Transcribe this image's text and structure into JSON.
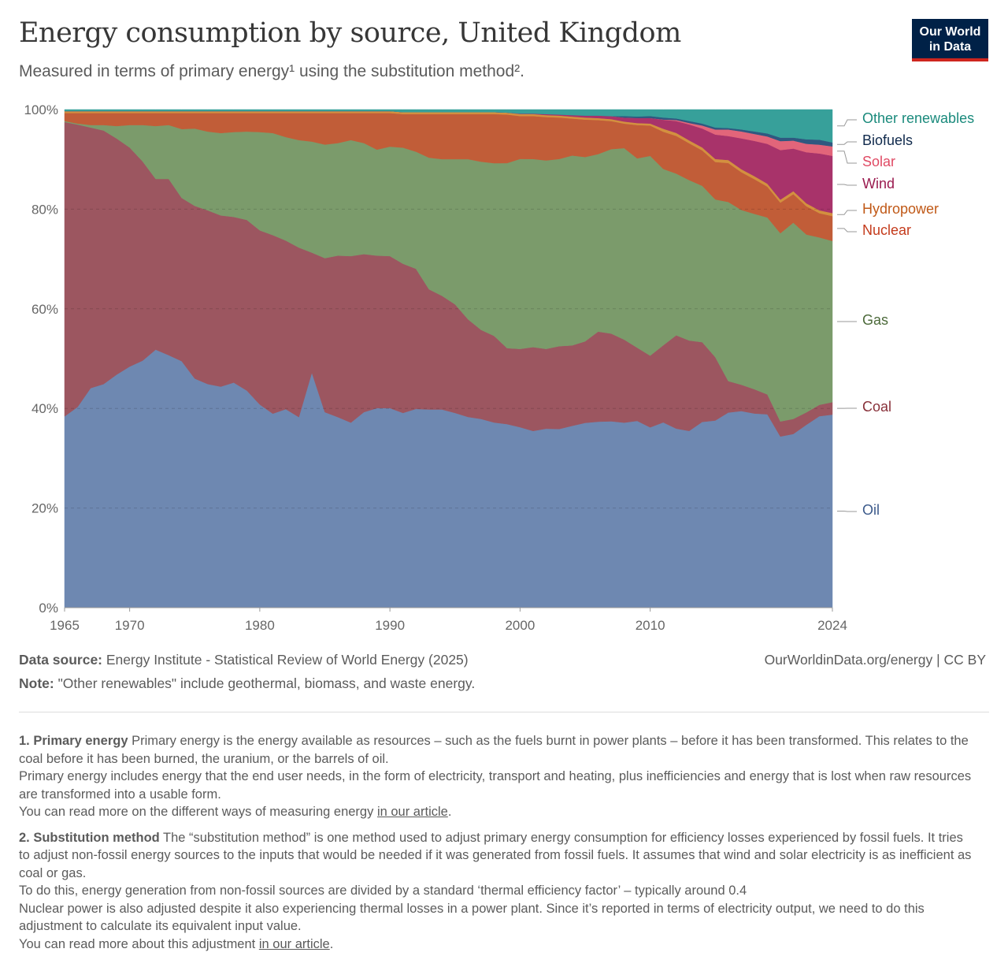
{
  "header": {
    "title": "Energy consumption by source, United Kingdom",
    "subtitle": "Measured in terms of primary energy¹ using the substitution method².",
    "logo_line1": "Our World",
    "logo_line2": "in Data"
  },
  "chart_data": {
    "type": "area",
    "stacked": "relative",
    "title": "Energy consumption by source, United Kingdom",
    "ylim": [
      0,
      100
    ],
    "y_ticks": [
      "0%",
      "20%",
      "40%",
      "60%",
      "80%",
      "100%"
    ],
    "x_ticks": [
      "1965",
      "1970",
      "1980",
      "1990",
      "2000",
      "2010",
      "2024"
    ],
    "grid": "horizontal dashed",
    "legend": "right (inline labels)",
    "x": [
      1965,
      1966,
      1967,
      1968,
      1969,
      1970,
      1971,
      1972,
      1973,
      1974,
      1975,
      1976,
      1977,
      1978,
      1979,
      1980,
      1981,
      1982,
      1983,
      1984,
      1985,
      1986,
      1987,
      1988,
      1989,
      1990,
      1991,
      1992,
      1993,
      1994,
      1995,
      1996,
      1997,
      1998,
      1999,
      2000,
      2001,
      2002,
      2003,
      2004,
      2005,
      2006,
      2007,
      2008,
      2009,
      2010,
      2011,
      2012,
      2013,
      2014,
      2015,
      2016,
      2017,
      2018,
      2019,
      2020,
      2021,
      2022,
      2023,
      2024
    ],
    "series": [
      {
        "name": "Oil",
        "color": "#6e88b1",
        "label_color": "#3c5a8b",
        "values": [
          38.4,
          40.2,
          44,
          44.8,
          46.7,
          48.3,
          49.5,
          51.7,
          50.6,
          49.4,
          45.9,
          44.8,
          44.3,
          45.1,
          43.5,
          40.7,
          38.8,
          39.7,
          38.1,
          47,
          39.1,
          38.1,
          37,
          39.1,
          39.9,
          39.9,
          38.9,
          39.7,
          39.6,
          39.6,
          38.9,
          38.1,
          37.7,
          37,
          36.7,
          36.2,
          35.4,
          35.9,
          35.8,
          36.4,
          37,
          37.2,
          37.2,
          37,
          37.5,
          36.2,
          37.3,
          36.1,
          35.6,
          37.3,
          37.5,
          39.1,
          39.6,
          39.1,
          38.9,
          34.2,
          34.7,
          36.9,
          38.8,
          38.8
        ]
      },
      {
        "name": "Coal",
        "color": "#9c5660",
        "label_color": "#883039",
        "values": [
          59.1,
          56.6,
          52.2,
          50.8,
          47.3,
          43.9,
          39.9,
          34.2,
          35.3,
          32.7,
          34.6,
          34.8,
          34.3,
          33.2,
          34.2,
          34.9,
          35.7,
          33.7,
          33.9,
          24,
          30.8,
          32.3,
          33.3,
          31.6,
          30.5,
          30.4,
          29.8,
          28,
          24,
          22.7,
          21.7,
          19.5,
          17.8,
          17.3,
          15.2,
          15.7,
          16.8,
          16,
          16.6,
          16.1,
          16.3,
          18,
          17.5,
          16.6,
          14.7,
          14.4,
          15.5,
          18.8,
          18.2,
          16,
          12.7,
          6.3,
          5.3,
          4.9,
          4,
          3,
          3,
          2.5,
          2.3,
          2.5
        ]
      },
      {
        "name": "Gas",
        "color": "#7b9b6b",
        "label_color": "#4c6a3a",
        "values": [
          0.2,
          0.2,
          0.5,
          1.1,
          2.5,
          4.5,
          7.3,
          10.6,
          10.8,
          13.8,
          15.5,
          15.8,
          16.5,
          17,
          17.7,
          19.7,
          20.4,
          20.7,
          21.5,
          22.2,
          22.7,
          22.5,
          23.2,
          22.2,
          21.2,
          21.9,
          23.2,
          23.4,
          26.3,
          27.3,
          29,
          32,
          33.6,
          34.5,
          37,
          38.1,
          37.7,
          37.8,
          37.5,
          38,
          36.9,
          35.5,
          36.8,
          38.3,
          38,
          40.1,
          35.5,
          32.6,
          32.3,
          31.4,
          31.6,
          35.9,
          35.2,
          35.3,
          35.6,
          37.6,
          39.2,
          35.9,
          33.9,
          32.4
        ]
      },
      {
        "name": "Nuclear",
        "color": "#c15d38",
        "label_color": "#c43b1c",
        "values": [
          1.6,
          2.1,
          2.4,
          2.4,
          2.6,
          2.4,
          2.4,
          2.6,
          2.4,
          3.2,
          3.1,
          3.7,
          4,
          3.8,
          3.7,
          3.8,
          4,
          4.8,
          5.4,
          5.7,
          6.3,
          6,
          5.4,
          6,
          7.3,
          6.7,
          6.7,
          7.5,
          8.7,
          9,
          9,
          9,
          9.5,
          9.8,
          9.7,
          8.6,
          8.6,
          8.7,
          8.3,
          7.4,
          7.5,
          6.8,
          5.6,
          4.9,
          6.7,
          6.1,
          7.5,
          7.6,
          7.4,
          7.1,
          7.5,
          7.8,
          7.6,
          7,
          6.2,
          6.1,
          5.7,
          5.7,
          4.9,
          5
        ]
      },
      {
        "name": "Hydropower",
        "color": "#d3903f",
        "label_color": "#c05917",
        "values": [
          0.4,
          0.4,
          0.4,
          0.4,
          0.4,
          0.4,
          0.4,
          0.4,
          0.4,
          0.4,
          0.4,
          0.4,
          0.4,
          0.4,
          0.4,
          0.4,
          0.4,
          0.4,
          0.4,
          0.4,
          0.4,
          0.4,
          0.4,
          0.4,
          0.4,
          0.4,
          0.4,
          0.4,
          0.4,
          0.4,
          0.4,
          0.4,
          0.4,
          0.4,
          0.4,
          0.4,
          0.4,
          0.4,
          0.4,
          0.4,
          0.4,
          0.4,
          0.4,
          0.4,
          0.4,
          0.4,
          0.6,
          0.6,
          0.6,
          0.6,
          0.6,
          0.6,
          0.6,
          0.6,
          0.6,
          0.6,
          0.6,
          0.6,
          0.6,
          0.6
        ]
      },
      {
        "name": "Wind",
        "color": "#a8336a",
        "label_color": "#9a1b4f",
        "values": [
          0,
          0,
          0,
          0,
          0,
          0,
          0,
          0,
          0,
          0,
          0,
          0,
          0,
          0,
          0,
          0,
          0,
          0,
          0,
          0,
          0,
          0,
          0,
          0,
          0,
          0,
          0,
          0,
          0,
          0,
          0,
          0,
          0,
          0,
          0,
          0.1,
          0.1,
          0.2,
          0.2,
          0.3,
          0.4,
          0.5,
          0.6,
          0.8,
          1,
          1.1,
          1.8,
          2.4,
          3.2,
          3.8,
          4.9,
          4.8,
          6.2,
          7.1,
          8,
          9.9,
          8.5,
          10.3,
          11.5,
          11.5
        ]
      },
      {
        "name": "Solar",
        "color": "#e2657a",
        "label_color": "#e04a64",
        "values": [
          0,
          0,
          0,
          0,
          0,
          0,
          0,
          0,
          0,
          0,
          0,
          0,
          0,
          0,
          0,
          0,
          0,
          0,
          0,
          0,
          0,
          0,
          0,
          0,
          0,
          0,
          0,
          0,
          0,
          0,
          0,
          0,
          0,
          0,
          0,
          0,
          0,
          0,
          0,
          0,
          0,
          0,
          0,
          0,
          0,
          0,
          0.05,
          0.2,
          0.3,
          0.6,
          1,
          1.3,
          1.4,
          1.4,
          1.5,
          1.8,
          1.6,
          1.7,
          1.8,
          1.9
        ]
      },
      {
        "name": "Biofuels",
        "color": "#2f5880",
        "label_color": "#102a4c",
        "values": [
          0,
          0,
          0,
          0,
          0,
          0,
          0,
          0,
          0,
          0,
          0,
          0,
          0,
          0,
          0,
          0,
          0,
          0,
          0,
          0,
          0,
          0,
          0,
          0,
          0,
          0,
          0,
          0,
          0,
          0,
          0,
          0,
          0,
          0,
          0,
          0,
          0,
          0,
          0,
          0,
          0,
          0,
          0,
          0.3,
          0.3,
          0.4,
          0.4,
          0.3,
          0.4,
          0.4,
          0.4,
          0.3,
          0.4,
          0.5,
          0.6,
          0.7,
          0.6,
          0.9,
          1,
          0.8
        ]
      },
      {
        "name": "Other renewables",
        "color": "#37a09a",
        "label_color": "#1a8a7c",
        "values": [
          0.3,
          0.3,
          0.3,
          0.3,
          0.3,
          0.3,
          0.3,
          0.3,
          0.3,
          0.3,
          0.3,
          0.3,
          0.3,
          0.3,
          0.3,
          0.3,
          0.3,
          0.3,
          0.3,
          0.3,
          0.3,
          0.3,
          0.3,
          0.3,
          0.3,
          0.3,
          0.5,
          0.5,
          0.5,
          0.5,
          0.5,
          0.5,
          0.5,
          0.5,
          0.6,
          0.8,
          0.8,
          0.9,
          1,
          1.1,
          1.2,
          1.2,
          1.3,
          1.3,
          1.4,
          1.3,
          1.6,
          1.8,
          2.3,
          2.8,
          3.6,
          3.7,
          4,
          4.4,
          4.8,
          5.6,
          5.6,
          6,
          6.1,
          6.6
        ]
      }
    ]
  },
  "footer": {
    "source_label": "Data source:",
    "source_text": " Energy Institute - Statistical Review of World Energy (2025)",
    "url": "OurWorldinData.org/energy | CC BY",
    "note_label": "Note:",
    "note_text": " \"Other renewables\" include geothermal, biomass, and waste energy."
  },
  "notes": {
    "n1_title": "1. Primary energy",
    "n1_l1": " Primary energy is the energy available as resources – such as the fuels burnt in power plants – before it has been transformed. This relates to the coal before it has been burned, the uranium, or the barrels of oil.",
    "n1_l2": "Primary energy includes energy that the end user needs, in the form of electricity, transport and heating, plus inefficiencies and energy that is lost when raw resources are transformed into a usable form.",
    "n1_l3": "You can read more on the different ways of measuring energy ",
    "n1_link": "in our article",
    "n2_title": "2. Substitution method",
    "n2_l1": " The “substitution method” is one method used to adjust primary energy consumption for efficiency losses experienced by fossil fuels. It tries to adjust non-fossil energy sources to the inputs that would be needed if it was generated from fossil fuels. It assumes that wind and solar electricity is as inefficient as coal or gas.",
    "n2_l2": "To do this, energy generation from non-fossil sources are divided by a standard ‘thermal efficiency factor’ – typically around 0.4",
    "n2_l3": "Nuclear power is also adjusted despite it also experiencing thermal losses in a power plant. Since it’s reported in terms of electricity output, we need to do this adjustment to calculate its equivalent input value.",
    "n2_l4": "You can read more about this adjustment ",
    "n2_link": "in our article",
    "period": "."
  }
}
